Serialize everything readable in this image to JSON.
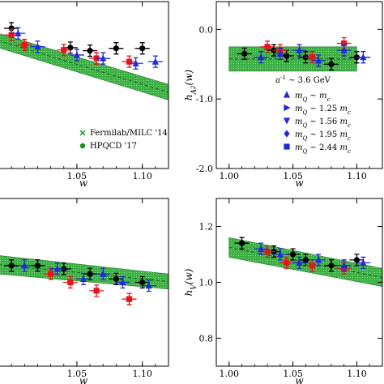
{
  "colors": {
    "band_fill": "#3cb043",
    "band_edge": "#1f7a26",
    "black": "#000000",
    "red": "#e8141c",
    "blue": "#1f2bd6",
    "green_marker": "#1a8f1f"
  },
  "chart_data": [
    {
      "id": "tl",
      "type": "scatter",
      "xlabel": "w",
      "ylabel": "",
      "xticks": [
        "1.05",
        "1.10"
      ],
      "yticks": [],
      "xlim": [
        0.99,
        1.12
      ],
      "ylim": [
        0.5,
        1.0
      ],
      "grid": false,
      "band": {
        "x": [
          0.99,
          1.12
        ],
        "lo": [
          0.862,
          0.705
        ],
        "hi": [
          0.905,
          0.752
        ]
      },
      "series": [
        {
          "name": "",
          "color": "black",
          "marker": "circle",
          "points": [
            [
              1.0,
              0.92
            ],
            [
              1.045,
              0.862
            ],
            [
              1.06,
              0.853
            ],
            [
              1.08,
              0.86
            ],
            [
              1.1,
              0.86
            ]
          ]
        },
        {
          "name": "",
          "color": "red",
          "marker": "square",
          "points": [
            [
              1.0,
              0.9
            ],
            [
              1.01,
              0.87
            ],
            [
              1.04,
              0.855
            ],
            [
              1.065,
              0.83
            ],
            [
              1.09,
              0.82
            ]
          ]
        },
        {
          "name": "",
          "color": "blue",
          "marker": "triangle",
          "points": [
            [
              1.005,
              0.905
            ],
            [
              1.02,
              0.865
            ],
            [
              1.05,
              0.84
            ],
            [
              1.07,
              0.83
            ],
            [
              1.095,
              0.815
            ],
            [
              1.11,
              0.82
            ]
          ]
        }
      ],
      "legend": {
        "placement": "bottom-right",
        "entries": [
          {
            "label": "Fermilab/MILC '14",
            "marker": "x"
          },
          {
            "label": "HPQCD '17",
            "marker": "star"
          }
        ]
      }
    },
    {
      "id": "tr",
      "type": "scatter",
      "xlabel": "w",
      "ylabel": "h",
      "ylabel_sub": "A",
      "ylabel_subsub": "2",
      "ylabel_arg": "(w)",
      "xticks": [
        "1.00",
        "1.05",
        "1.10"
      ],
      "yticks": [
        "0.0",
        "-1.0",
        "-2.0"
      ],
      "xlim": [
        0.99,
        1.12
      ],
      "ylim": [
        -2.0,
        0.4
      ],
      "grid": false,
      "band": {
        "x": [
          1.0,
          1.1
        ],
        "lo": [
          -0.6,
          -0.6
        ],
        "hi": [
          -0.25,
          -0.25
        ]
      },
      "series": [
        {
          "name": "",
          "color": "black",
          "marker": "circle",
          "points": [
            [
              1.012,
              -0.35
            ],
            [
              1.035,
              -0.3
            ],
            [
              1.045,
              -0.38
            ],
            [
              1.06,
              -0.4
            ],
            [
              1.08,
              -0.5
            ],
            [
              1.1,
              -0.4
            ]
          ]
        },
        {
          "name": "",
          "color": "red",
          "marker": "square",
          "points": [
            [
              1.03,
              -0.25
            ],
            [
              1.04,
              -0.3
            ],
            [
              1.065,
              -0.4
            ],
            [
              1.09,
              -0.2
            ]
          ]
        },
        {
          "name": "",
          "color": "blue",
          "marker": "triangle",
          "points": [
            [
              1.025,
              -0.4
            ],
            [
              1.04,
              -0.35
            ],
            [
              1.055,
              -0.3
            ],
            [
              1.07,
              -0.45
            ],
            [
              1.09,
              -0.3
            ],
            [
              1.105,
              -0.4
            ]
          ]
        }
      ],
      "legend": {
        "placement": "middle-right",
        "header": "a",
        "header_sup": "-1",
        "header_rest": " ~ 3.6 GeV",
        "entries": [
          {
            "pre": "m",
            "pre_sub": "Q",
            "mid": " ~ ",
            "coef": "",
            "post": "m",
            "post_sub": "c",
            "marker": "triangle-up"
          },
          {
            "pre": "m",
            "pre_sub": "Q",
            "mid": " ~ ",
            "coef": "1.25 ",
            "post": "m",
            "post_sub": "c",
            "marker": "triangle-right"
          },
          {
            "pre": "m",
            "pre_sub": "Q",
            "mid": " ~ ",
            "coef": "1.56 ",
            "post": "m",
            "post_sub": "c",
            "marker": "triangle-down"
          },
          {
            "pre": "m",
            "pre_sub": "Q",
            "mid": " ~ ",
            "coef": "1.95 ",
            "post": "m",
            "post_sub": "c",
            "marker": "diamond"
          },
          {
            "pre": "m",
            "pre_sub": "Q",
            "mid": " ~ ",
            "coef": "2.44 ",
            "post": "m",
            "post_sub": "c",
            "marker": "square"
          }
        ]
      }
    },
    {
      "id": "bl",
      "type": "scatter",
      "xlabel": "w",
      "ylabel": "",
      "xticks": [
        "1.05",
        "1.10"
      ],
      "yticks": [],
      "xlim": [
        0.99,
        1.12
      ],
      "ylim": [
        0.0,
        1.0
      ],
      "grid": false,
      "band": {
        "x": [
          0.99,
          1.12
        ],
        "lo": [
          0.55,
          0.46
        ],
        "hi": [
          0.66,
          0.55
        ]
      },
      "series": [
        {
          "name": "",
          "color": "black",
          "marker": "circle",
          "points": [
            [
              1.0,
              0.6
            ],
            [
              1.02,
              0.6
            ],
            [
              1.04,
              0.58
            ],
            [
              1.06,
              0.55
            ],
            [
              1.08,
              0.52
            ],
            [
              1.1,
              0.5
            ]
          ]
        },
        {
          "name": "",
          "color": "red",
          "marker": "square",
          "points": [
            [
              1.03,
              0.55
            ],
            [
              1.045,
              0.5
            ],
            [
              1.065,
              0.45
            ],
            [
              1.09,
              0.4
            ]
          ]
        },
        {
          "name": "",
          "color": "blue",
          "marker": "triangle",
          "points": [
            [
              1.01,
              0.6
            ],
            [
              1.035,
              0.58
            ],
            [
              1.055,
              0.52
            ],
            [
              1.07,
              0.55
            ],
            [
              1.085,
              0.5
            ],
            [
              1.105,
              0.48
            ]
          ]
        }
      ]
    },
    {
      "id": "br",
      "type": "scatter",
      "xlabel": "w",
      "ylabel": "h",
      "ylabel_sub": "V",
      "ylabel_subsub": "",
      "ylabel_arg": "(w)",
      "xticks": [
        "1.00",
        "1.05",
        "1.10"
      ],
      "yticks": [
        "1.2",
        "1.0",
        "0.8"
      ],
      "xlim": [
        0.99,
        1.12
      ],
      "ylim": [
        0.7,
        1.3
      ],
      "grid": false,
      "band": {
        "x": [
          1.0,
          1.12
        ],
        "lo": [
          1.09,
          0.985
        ],
        "hi": [
          1.16,
          1.05
        ]
      },
      "series": [
        {
          "name": "",
          "color": "black",
          "marker": "circle",
          "points": [
            [
              1.01,
              1.14
            ],
            [
              1.035,
              1.11
            ],
            [
              1.05,
              1.1
            ],
            [
              1.06,
              1.08
            ],
            [
              1.08,
              1.06
            ],
            [
              1.1,
              1.08
            ]
          ]
        },
        {
          "name": "",
          "color": "red",
          "marker": "square",
          "points": [
            [
              1.03,
              1.11
            ],
            [
              1.045,
              1.07
            ],
            [
              1.065,
              1.06
            ],
            [
              1.09,
              1.05
            ]
          ]
        },
        {
          "name": "",
          "color": "blue",
          "marker": "triangle",
          "points": [
            [
              1.025,
              1.12
            ],
            [
              1.04,
              1.1
            ],
            [
              1.055,
              1.07
            ],
            [
              1.07,
              1.08
            ],
            [
              1.09,
              1.06
            ],
            [
              1.105,
              1.07
            ]
          ]
        }
      ]
    }
  ]
}
